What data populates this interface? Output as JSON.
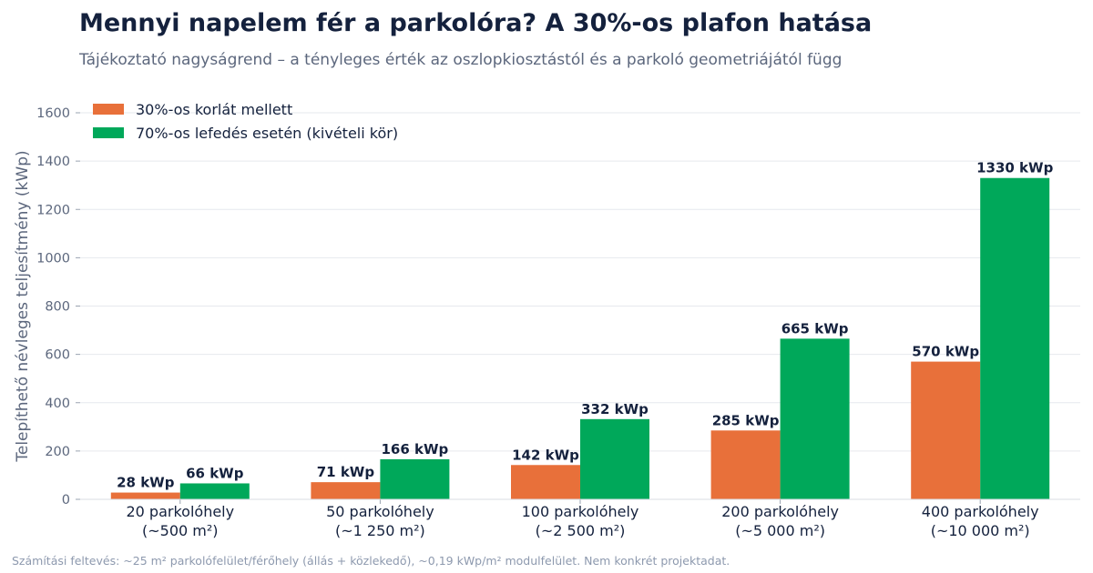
{
  "title": "Mennyi napelem fér a parkolóra? A 30%-os plafon hatása",
  "subtitle": "Tájékoztató nagyságrend – a tényleges érték az oszlopkiosztástól és a parkoló geometriájától függ",
  "footnote": "Számítási feltevés: ~25 m² parkolófelület/férőhely (állás + közlekedő), ~0,19 kWp/m² modulfelület. Nem konkrét projektadat.",
  "chart_data": {
    "type": "bar",
    "ylabel": "Telepíthető névleges teljesítmény (kWp)",
    "ylim": [
      0,
      1600
    ],
    "yticks": [
      0,
      200,
      400,
      600,
      800,
      1000,
      1200,
      1400,
      1600
    ],
    "grid": true,
    "legend_position": "top-left",
    "categories": [
      [
        "20 parkolóhely",
        "(~500 m²)"
      ],
      [
        "50 parkolóhely",
        "(~1 250 m²)"
      ],
      [
        "100 parkolóhely",
        "(~2 500 m²)"
      ],
      [
        "200 parkolóhely",
        "(~5 000 m²)"
      ],
      [
        "400 parkolóhely",
        "(~10 000 m²)"
      ]
    ],
    "series": [
      {
        "name": "30%-os korlát mellett",
        "color": "#e8703a",
        "values": [
          28,
          71,
          142,
          285,
          570
        ],
        "labels": [
          "28 kWp",
          "71 kWp",
          "142 kWp",
          "285 kWp",
          "570 kWp"
        ]
      },
      {
        "name": "70%-os lefedés esetén (kivételi kör)",
        "color": "#00a85a",
        "values": [
          66,
          166,
          332,
          665,
          1330
        ],
        "labels": [
          "66 kWp",
          "166 kWp",
          "332 kWp",
          "665 kWp",
          "1330 kWp"
        ]
      }
    ]
  }
}
